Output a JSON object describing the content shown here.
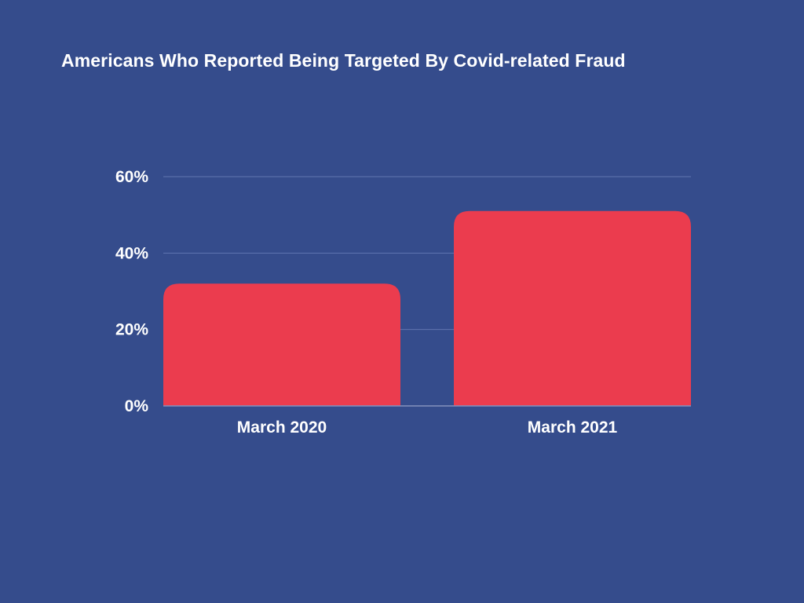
{
  "chart_data": {
    "type": "bar",
    "title": "Americans Who Reported Being Targeted By Covid-related Fraud",
    "categories": [
      "March 2020",
      "March 2021"
    ],
    "values": [
      32,
      51
    ],
    "ylim": [
      0,
      60
    ],
    "yticks": [
      0,
      20,
      40,
      60
    ],
    "ytick_labels": [
      "0%",
      "20%",
      "40%",
      "60%"
    ],
    "xlabel": "",
    "ylabel": "",
    "grid": true,
    "legend": "none",
    "colors": {
      "background": "#354C8C",
      "bar": "#EB3C4E",
      "text": "#FFFFFF",
      "gridline": "#6176B0"
    }
  }
}
